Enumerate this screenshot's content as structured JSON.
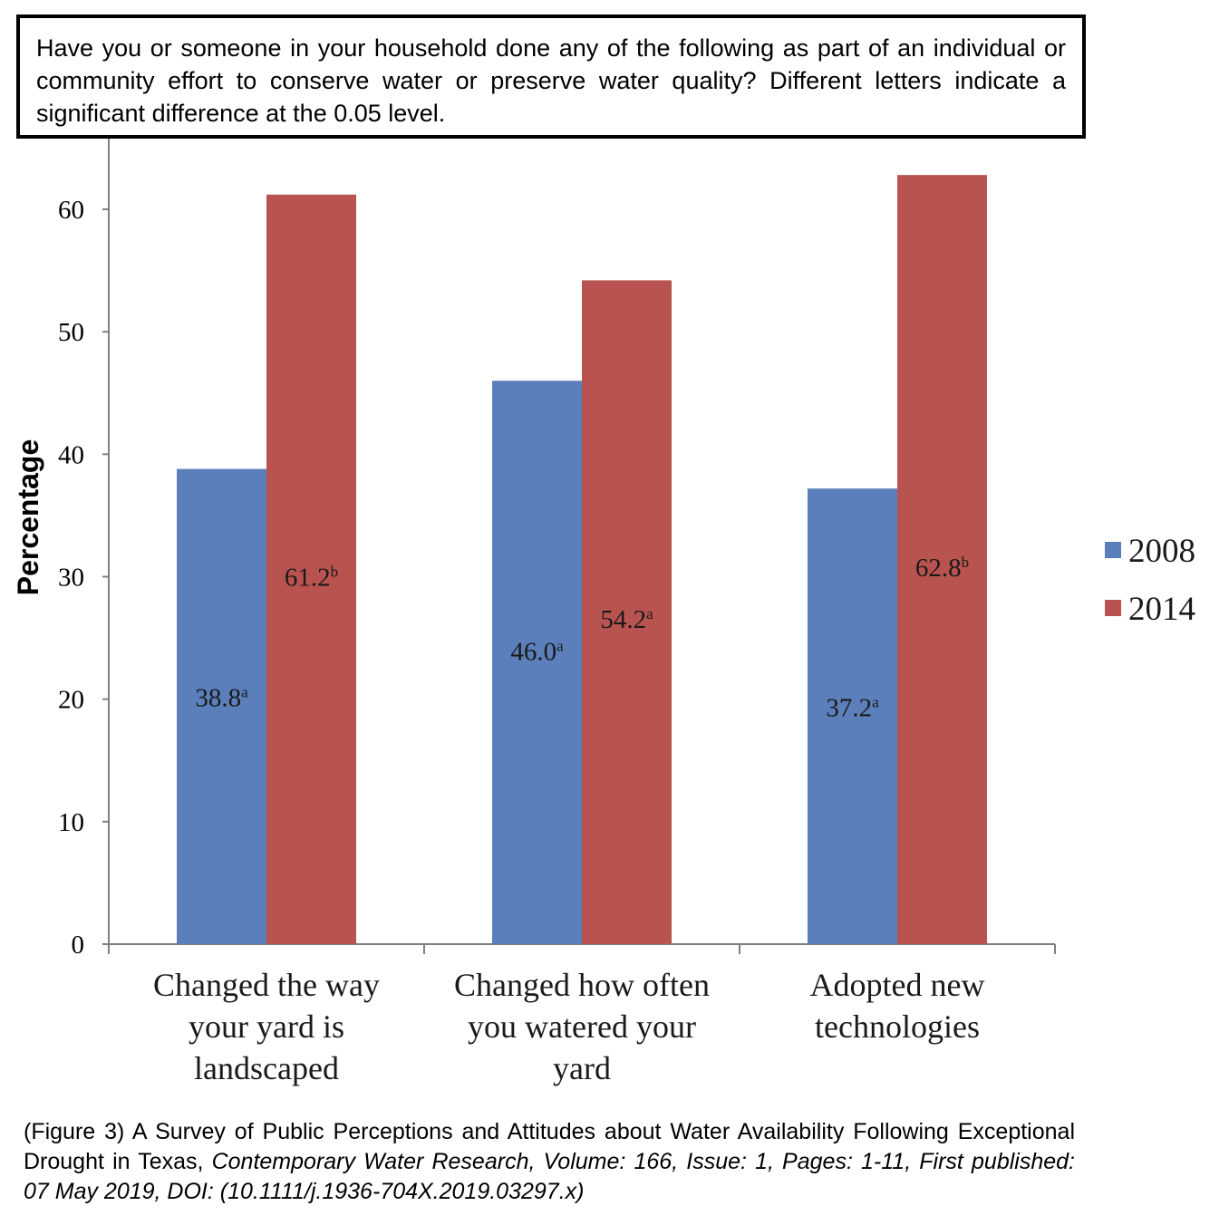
{
  "header": {
    "title": "Have you or someone in your household done any of the following as part of an individual or community effort to conserve water or preserve water quality? Different letters indicate a significant difference at the 0.05 level."
  },
  "chart_data": {
    "type": "bar",
    "categories": [
      [
        "Changed the way",
        "your yard is",
        "landscaped"
      ],
      [
        "Changed how often",
        "you watered your",
        "yard"
      ],
      [
        "Adopted new",
        "technologies"
      ]
    ],
    "series": [
      {
        "name": "2008",
        "color": "#5b7fbb",
        "values": [
          38.8,
          46.0,
          37.2
        ],
        "labels": [
          "38.8",
          "46.0",
          "37.2"
        ],
        "letters": [
          "a",
          "a",
          "a"
        ]
      },
      {
        "name": "2014",
        "color": "#b9534f",
        "values": [
          61.2,
          54.2,
          62.8
        ],
        "labels": [
          "61.2",
          "54.2",
          "62.8"
        ],
        "letters": [
          "b",
          "a",
          "b"
        ]
      }
    ],
    "ylabel": "Percentage",
    "xlabel": "",
    "ylim": [
      0,
      60
    ],
    "yticks": [
      0,
      10,
      20,
      30,
      40,
      50,
      60
    ],
    "legend_position": "right",
    "grid": false
  },
  "caption": {
    "plain": "(Figure 3) A Survey of Public Perceptions and Attitudes about Water Availability Following Exceptional Drought in Texas, ",
    "italic": "Contemporary Water Research, Volume: 166, Issue: 1, Pages: 1-11, First published: 07 May 2019, DOI: (10.1111/j.1936-704X.2019.03297.x)"
  }
}
